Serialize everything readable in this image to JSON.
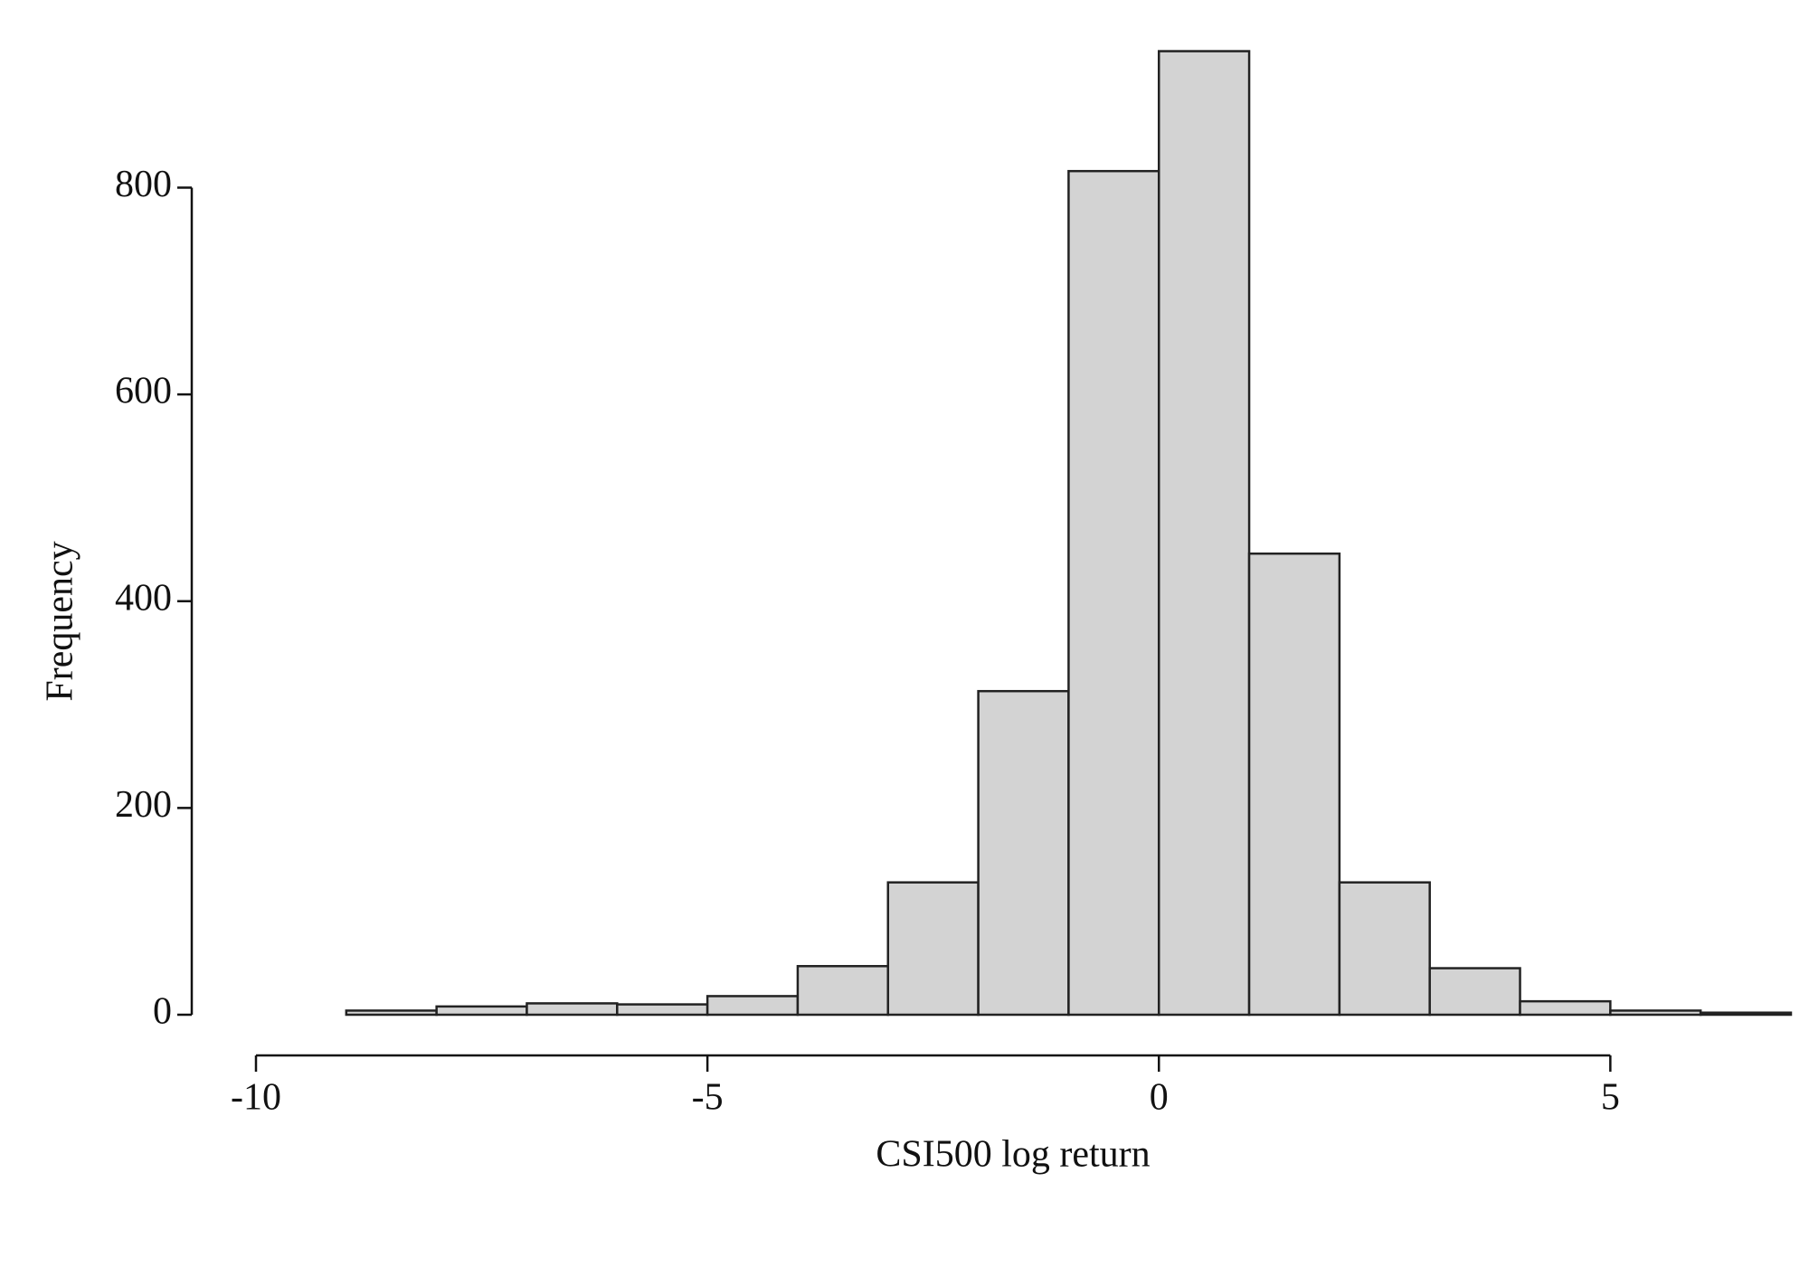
{
  "chart_data": {
    "type": "histogram",
    "x_label": "CSI500 log return",
    "y_label": "Frequency",
    "bins": [
      -10,
      -9,
      -8,
      -7,
      -6,
      -5,
      -4,
      -3,
      -2,
      -1,
      0,
      1,
      2,
      3,
      4,
      5,
      6,
      7
    ],
    "counts": [
      0,
      4,
      8,
      11,
      10,
      18,
      47,
      128,
      313,
      816,
      932,
      446,
      128,
      45,
      13,
      4,
      2
    ],
    "color": "#d3d3d3",
    "xlim": [
      -10,
      7
    ],
    "xticks": [
      -10,
      -5,
      0,
      5
    ],
    "ylim": [
      0,
      950
    ],
    "yticks": [
      0,
      200,
      400,
      600,
      800
    ]
  }
}
